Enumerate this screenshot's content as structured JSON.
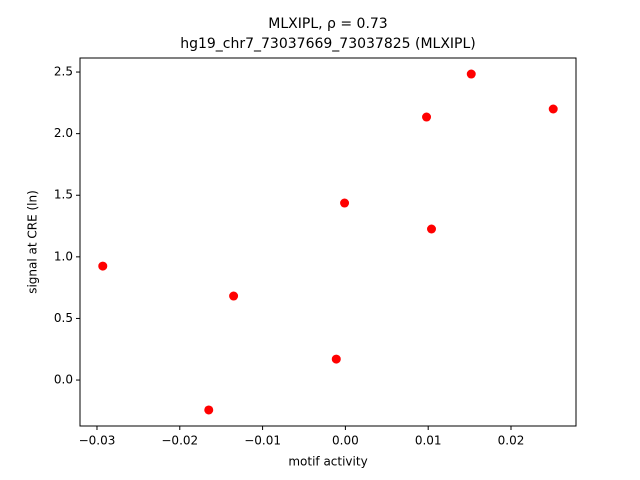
{
  "chart_data": {
    "type": "scatter",
    "title": "MLXIPL, ρ = 0.73",
    "subtitle": "hg19_chr7_73037669_73037825 (MLXIPL)",
    "x_label": "motif activity",
    "y_label": "signal at CRE (ln)",
    "color": "#ff0000",
    "x": [
      -0.0293,
      -0.0165,
      -0.0135,
      -0.0011,
      -0.0001,
      0.0098,
      0.0104,
      0.0152,
      0.0251
    ],
    "values": [
      0.925,
      -0.243,
      0.682,
      0.17,
      1.437,
      2.135,
      1.226,
      2.484,
      2.2
    ],
    "xlim": [
      -0.03205,
      0.02785
    ],
    "ylim": [
      -0.373,
      2.614
    ],
    "xticks": [
      {
        "value": -0.03,
        "label": "−0.03"
      },
      {
        "value": -0.02,
        "label": "−0.02"
      },
      {
        "value": -0.01,
        "label": "−0.01"
      },
      {
        "value": 0,
        "label": "0.00"
      },
      {
        "value": 0.01,
        "label": "0.01"
      },
      {
        "value": 0.02,
        "label": "0.02"
      }
    ],
    "yticks": [
      {
        "value": 0,
        "label": "0.0"
      },
      0.5,
      {
        "value": 1,
        "label": "1.0"
      },
      1.5,
      {
        "value": 2,
        "label": "2.0"
      },
      2.5
    ]
  }
}
